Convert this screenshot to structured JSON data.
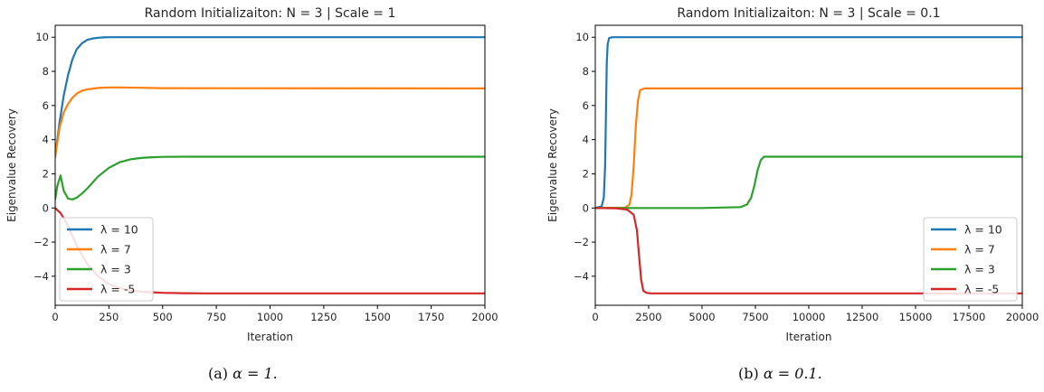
{
  "chart_data": [
    {
      "type": "line",
      "title": "Random Initializaiton: N = 3 | Scale = 1",
      "xlabel": "Iteration",
      "ylabel": "Eigenvalue Recovery",
      "xlim": [
        0,
        2000
      ],
      "ylim": [
        -5.7,
        10.7
      ],
      "xticks": [
        0,
        250,
        500,
        750,
        1000,
        1250,
        1500,
        1750,
        2000
      ],
      "yticks": [
        -4,
        -2,
        0,
        2,
        4,
        6,
        8,
        10
      ],
      "legend_position": "lower-left",
      "grid": false,
      "series": [
        {
          "name": "λ = 10",
          "color": "#1f77b4",
          "x": [
            0,
            20,
            40,
            60,
            80,
            100,
            125,
            150,
            175,
            200,
            225,
            250,
            300,
            400,
            2000
          ],
          "y": [
            3.0,
            5.0,
            6.6,
            7.8,
            8.7,
            9.3,
            9.65,
            9.85,
            9.93,
            9.97,
            9.99,
            10.0,
            10.0,
            10.0,
            10.0
          ]
        },
        {
          "name": "λ = 7",
          "color": "#ff7f0e",
          "x": [
            0,
            20,
            40,
            60,
            80,
            100,
            125,
            150,
            200,
            250,
            300,
            400,
            500,
            2000
          ],
          "y": [
            3.0,
            4.7,
            5.6,
            6.1,
            6.45,
            6.7,
            6.87,
            6.95,
            7.03,
            7.06,
            7.06,
            7.04,
            7.02,
            7.0
          ]
        },
        {
          "name": "λ = 3",
          "color": "#2ca02c",
          "x": [
            0,
            10,
            25,
            40,
            60,
            80,
            100,
            125,
            150,
            200,
            250,
            300,
            350,
            400,
            450,
            500,
            600,
            2000
          ],
          "y": [
            0.5,
            1.3,
            1.9,
            1.0,
            0.55,
            0.5,
            0.6,
            0.85,
            1.15,
            1.85,
            2.35,
            2.68,
            2.85,
            2.93,
            2.97,
            2.99,
            3.0,
            3.0
          ]
        },
        {
          "name": "λ = -5",
          "color": "#d62728",
          "x": [
            0,
            25,
            50,
            75,
            100,
            150,
            200,
            250,
            300,
            350,
            400,
            450,
            500,
            600,
            700,
            2000
          ],
          "y": [
            0.0,
            -0.3,
            -0.8,
            -1.5,
            -2.2,
            -3.3,
            -4.0,
            -4.45,
            -4.7,
            -4.83,
            -4.9,
            -4.94,
            -4.97,
            -4.99,
            -5.0,
            -5.0
          ]
        }
      ]
    },
    {
      "type": "line",
      "title": "Random Initializaiton: N = 3 | Scale = 0.1",
      "xlabel": "Iteration",
      "ylabel": "Eigenvalue Recovery",
      "xlim": [
        0,
        20000
      ],
      "ylim": [
        -5.7,
        10.7
      ],
      "xticks": [
        0,
        2500,
        5000,
        7500,
        10000,
        12500,
        15000,
        17500,
        20000
      ],
      "yticks": [
        -4,
        -2,
        0,
        2,
        4,
        6,
        8,
        10
      ],
      "legend_position": "lower-right",
      "grid": false,
      "series": [
        {
          "name": "λ = 10",
          "color": "#1f77b4",
          "x": [
            0,
            300,
            400,
            460,
            500,
            540,
            580,
            650,
            800,
            20000
          ],
          "y": [
            0.0,
            0.1,
            0.6,
            2.5,
            5.5,
            8.5,
            9.6,
            9.95,
            10.0,
            10.0
          ]
        },
        {
          "name": "λ = 7",
          "color": "#ff7f0e",
          "x": [
            0,
            1400,
            1600,
            1700,
            1800,
            1900,
            2000,
            2100,
            2300,
            20000
          ],
          "y": [
            0.0,
            0.02,
            0.2,
            0.8,
            2.5,
            4.8,
            6.3,
            6.9,
            7.0,
            7.0
          ]
        },
        {
          "name": "λ = 3",
          "color": "#2ca02c",
          "x": [
            0,
            5000,
            6800,
            7100,
            7300,
            7450,
            7600,
            7750,
            7900,
            8200,
            20000
          ],
          "y": [
            0.0,
            0.0,
            0.05,
            0.2,
            0.6,
            1.3,
            2.2,
            2.8,
            3.0,
            3.0,
            3.0
          ]
        },
        {
          "name": "λ = -5",
          "color": "#d62728",
          "x": [
            0,
            1000,
            1500,
            1800,
            1950,
            2050,
            2150,
            2250,
            2400,
            2600,
            20000
          ],
          "y": [
            0.0,
            -0.02,
            -0.1,
            -0.4,
            -1.3,
            -2.8,
            -4.2,
            -4.85,
            -4.97,
            -5.0,
            -5.0
          ]
        }
      ]
    }
  ],
  "captions": [
    {
      "prefix": "(a) ",
      "math": "α = 1."
    },
    {
      "prefix": "(b) ",
      "math": "α = 0.1."
    }
  ]
}
